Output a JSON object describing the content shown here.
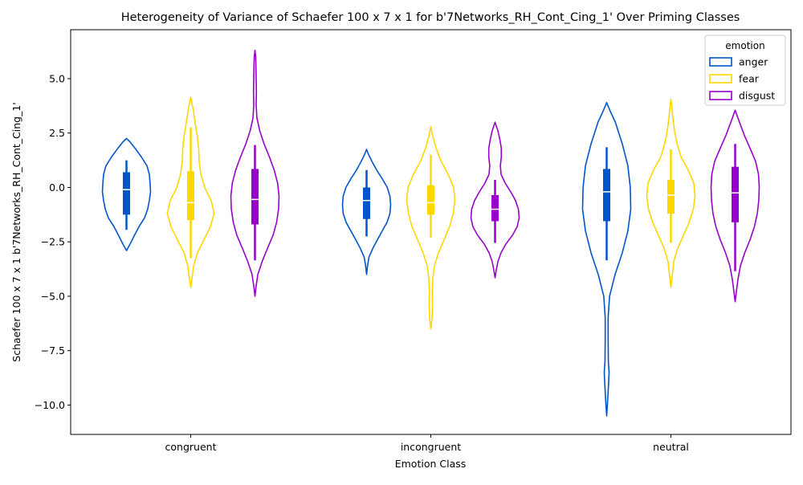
{
  "chart_data": {
    "type": "violin",
    "title": "Heterogeneity of Variance of Schaefer 100 x 7 x 1 for b'7Networks_RH_Cont_Cing_1' Over Priming Classes",
    "xlabel": "Emotion Class",
    "ylabel": "Schaefer 100 x 7 x 1 b'7Networks_RH_Cont_Cing_1'",
    "categories": [
      "congruent",
      "incongruent",
      "neutral"
    ],
    "ylim": [
      -11.35,
      7.25
    ],
    "yticks": [
      -10.0,
      -7.5,
      -5.0,
      -2.5,
      0.0,
      2.5,
      5.0
    ],
    "ytick_labels": [
      "−10.0",
      "−7.5",
      "−5.0",
      "−2.5",
      "0.0",
      "2.5",
      "5.0"
    ],
    "legend": {
      "title": "emotion",
      "position": "top-right"
    },
    "series": [
      {
        "name": "anger",
        "color": "#0055cc",
        "groups": [
          {
            "category": "congruent",
            "box": {
              "q1": -1.25,
              "median": -0.1,
              "q3": 0.7,
              "whisker_low": -1.95,
              "whisker_high": 1.25
            },
            "density": [
              [
                -2.9,
                0.0
              ],
              [
                -2.6,
                0.15
              ],
              [
                -2.2,
                0.33
              ],
              [
                -1.8,
                0.52
              ],
              [
                -1.4,
                0.75
              ],
              [
                -1.0,
                0.88
              ],
              [
                -0.6,
                0.95
              ],
              [
                -0.2,
                1.0
              ],
              [
                0.2,
                0.98
              ],
              [
                0.6,
                0.95
              ],
              [
                1.0,
                0.85
              ],
              [
                1.4,
                0.62
              ],
              [
                1.8,
                0.36
              ],
              [
                2.1,
                0.14
              ],
              [
                2.25,
                0.0
              ]
            ]
          },
          {
            "category": "incongruent",
            "box": {
              "q1": -1.45,
              "median": -0.6,
              "q3": 0.0,
              "whisker_low": -2.25,
              "whisker_high": 0.8
            },
            "density": [
              [
                -4.0,
                0.0
              ],
              [
                -3.6,
                0.04
              ],
              [
                -3.2,
                0.1
              ],
              [
                -2.8,
                0.26
              ],
              [
                -2.4,
                0.45
              ],
              [
                -2.0,
                0.65
              ],
              [
                -1.6,
                0.85
              ],
              [
                -1.2,
                0.97
              ],
              [
                -0.8,
                1.0
              ],
              [
                -0.4,
                0.97
              ],
              [
                0.0,
                0.86
              ],
              [
                0.4,
                0.65
              ],
              [
                0.8,
                0.42
              ],
              [
                1.2,
                0.22
              ],
              [
                1.55,
                0.07
              ],
              [
                1.75,
                0.0
              ]
            ]
          },
          {
            "category": "neutral",
            "box": {
              "q1": -1.55,
              "median": -0.2,
              "q3": 0.85,
              "whisker_low": -3.35,
              "whisker_high": 1.85
            },
            "density": [
              [
                -10.5,
                0.0
              ],
              [
                -10.0,
                0.03
              ],
              [
                -9.0,
                0.08
              ],
              [
                -8.5,
                0.1
              ],
              [
                -8.0,
                0.07
              ],
              [
                -7.0,
                0.06
              ],
              [
                -6.0,
                0.06
              ],
              [
                -5.0,
                0.12
              ],
              [
                -4.0,
                0.35
              ],
              [
                -3.0,
                0.65
              ],
              [
                -2.0,
                0.88
              ],
              [
                -1.0,
                1.0
              ],
              [
                0.0,
                0.98
              ],
              [
                1.0,
                0.88
              ],
              [
                2.0,
                0.65
              ],
              [
                3.0,
                0.36
              ],
              [
                3.5,
                0.15
              ],
              [
                3.9,
                0.0
              ]
            ]
          }
        ]
      },
      {
        "name": "fear",
        "color": "#ffd700",
        "groups": [
          {
            "category": "congruent",
            "box": {
              "q1": -1.5,
              "median": -0.7,
              "q3": 0.75,
              "whisker_low": -3.25,
              "whisker_high": 2.75
            },
            "density": [
              [
                -4.6,
                0.0
              ],
              [
                -4.2,
                0.05
              ],
              [
                -3.6,
                0.12
              ],
              [
                -3.0,
                0.28
              ],
              [
                -2.4,
                0.55
              ],
              [
                -1.8,
                0.82
              ],
              [
                -1.2,
                0.97
              ],
              [
                -0.6,
                0.85
              ],
              [
                0.0,
                0.58
              ],
              [
                0.6,
                0.42
              ],
              [
                1.2,
                0.35
              ],
              [
                1.8,
                0.33
              ],
              [
                2.4,
                0.27
              ],
              [
                3.0,
                0.18
              ],
              [
                3.6,
                0.1
              ],
              [
                4.15,
                0.0
              ]
            ]
          },
          {
            "category": "incongruent",
            "box": {
              "q1": -1.25,
              "median": -0.7,
              "q3": 0.1,
              "whisker_low": -2.3,
              "whisker_high": 1.5
            },
            "density": [
              [
                -6.5,
                0.0
              ],
              [
                -6.0,
                0.05
              ],
              [
                -5.4,
                0.07
              ],
              [
                -4.8,
                0.06
              ],
              [
                -4.2,
                0.08
              ],
              [
                -3.6,
                0.15
              ],
              [
                -3.0,
                0.32
              ],
              [
                -2.4,
                0.55
              ],
              [
                -1.8,
                0.78
              ],
              [
                -1.2,
                0.93
              ],
              [
                -0.6,
                1.0
              ],
              [
                0.0,
                0.95
              ],
              [
                0.6,
                0.72
              ],
              [
                1.2,
                0.43
              ],
              [
                1.8,
                0.22
              ],
              [
                2.4,
                0.07
              ],
              [
                2.8,
                0.0
              ]
            ]
          },
          {
            "category": "neutral",
            "box": {
              "q1": -1.2,
              "median": -0.35,
              "q3": 0.35,
              "whisker_low": -2.55,
              "whisker_high": 1.75
            },
            "density": [
              [
                -4.6,
                0.0
              ],
              [
                -4.0,
                0.06
              ],
              [
                -3.4,
                0.12
              ],
              [
                -2.8,
                0.28
              ],
              [
                -2.2,
                0.52
              ],
              [
                -1.6,
                0.76
              ],
              [
                -1.0,
                0.93
              ],
              [
                -0.4,
                1.0
              ],
              [
                0.2,
                0.95
              ],
              [
                0.8,
                0.72
              ],
              [
                1.4,
                0.42
              ],
              [
                2.0,
                0.26
              ],
              [
                2.6,
                0.15
              ],
              [
                3.2,
                0.08
              ],
              [
                3.7,
                0.04
              ],
              [
                4.05,
                0.0
              ]
            ]
          }
        ]
      },
      {
        "name": "disgust",
        "color": "#9900cc",
        "groups": [
          {
            "category": "congruent",
            "box": {
              "q1": -1.7,
              "median": -0.55,
              "q3": 0.85,
              "whisker_low": -3.35,
              "whisker_high": 1.95
            },
            "density": [
              [
                -5.0,
                0.0
              ],
              [
                -4.6,
                0.04
              ],
              [
                -4.0,
                0.12
              ],
              [
                -3.4,
                0.3
              ],
              [
                -2.8,
                0.52
              ],
              [
                -2.2,
                0.75
              ],
              [
                -1.6,
                0.9
              ],
              [
                -1.0,
                0.98
              ],
              [
                -0.4,
                1.0
              ],
              [
                0.2,
                0.94
              ],
              [
                0.8,
                0.8
              ],
              [
                1.4,
                0.6
              ],
              [
                2.0,
                0.38
              ],
              [
                2.6,
                0.2
              ],
              [
                3.2,
                0.08
              ],
              [
                3.8,
                0.05
              ],
              [
                4.4,
                0.06
              ],
              [
                5.0,
                0.05
              ],
              [
                5.6,
                0.04
              ],
              [
                6.0,
                0.03
              ],
              [
                6.3,
                0.0
              ]
            ]
          },
          {
            "category": "incongruent",
            "box": {
              "q1": -1.55,
              "median": -1.0,
              "q3": -0.35,
              "whisker_low": -2.55,
              "whisker_high": 0.35
            },
            "density": [
              [
                -4.15,
                0.0
              ],
              [
                -3.8,
                0.05
              ],
              [
                -3.4,
                0.12
              ],
              [
                -3.0,
                0.25
              ],
              [
                -2.6,
                0.45
              ],
              [
                -2.2,
                0.72
              ],
              [
                -1.8,
                0.92
              ],
              [
                -1.4,
                1.0
              ],
              [
                -1.0,
                0.97
              ],
              [
                -0.6,
                0.85
              ],
              [
                -0.2,
                0.65
              ],
              [
                0.2,
                0.42
              ],
              [
                0.6,
                0.25
              ],
              [
                1.0,
                0.22
              ],
              [
                1.4,
                0.26
              ],
              [
                1.8,
                0.26
              ],
              [
                2.2,
                0.2
              ],
              [
                2.6,
                0.12
              ],
              [
                3.0,
                0.0
              ]
            ]
          },
          {
            "category": "neutral",
            "box": {
              "q1": -1.6,
              "median": -0.25,
              "q3": 0.95,
              "whisker_low": -3.85,
              "whisker_high": 2.0
            },
            "density": [
              [
                -5.25,
                0.0
              ],
              [
                -4.8,
                0.05
              ],
              [
                -4.2,
                0.12
              ],
              [
                -3.6,
                0.22
              ],
              [
                -3.0,
                0.4
              ],
              [
                -2.4,
                0.62
              ],
              [
                -1.8,
                0.8
              ],
              [
                -1.2,
                0.92
              ],
              [
                -0.6,
                0.98
              ],
              [
                0.0,
                1.0
              ],
              [
                0.6,
                0.97
              ],
              [
                1.2,
                0.85
              ],
              [
                1.8,
                0.62
              ],
              [
                2.4,
                0.38
              ],
              [
                3.0,
                0.18
              ],
              [
                3.3,
                0.08
              ],
              [
                3.55,
                0.0
              ]
            ]
          }
        ]
      }
    ]
  }
}
